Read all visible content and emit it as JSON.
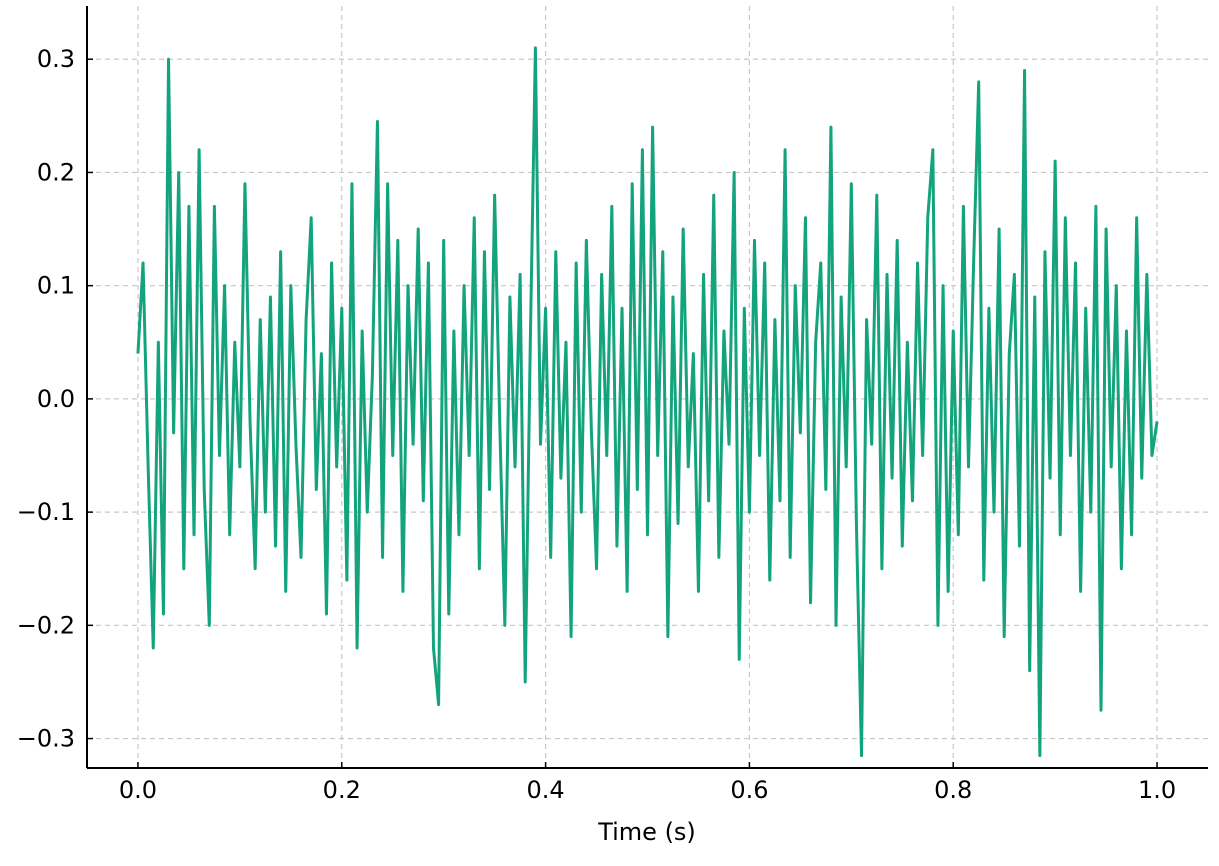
{
  "chart_data": {
    "type": "line",
    "xlabel": "Time (s)",
    "xlim": [
      -0.05,
      1.05
    ],
    "ylim": [
      -0.326,
      0.347
    ],
    "xticks": [
      {
        "value": 0,
        "label": "0.0"
      },
      0.2,
      0.4,
      0.6,
      0.8,
      {
        "value": 1,
        "label": "1.0"
      }
    ],
    "yticks": [
      {
        "value": -0.3,
        "label": "−0.3"
      },
      {
        "value": -0.2,
        "label": "−0.2"
      },
      {
        "value": -0.1,
        "label": "−0.1"
      },
      {
        "value": 0,
        "label": "0.0"
      },
      0.1,
      0.2,
      0.3
    ],
    "grid": true,
    "x": [
      0,
      0.005,
      0.01,
      0.015,
      0.02,
      0.025,
      0.03,
      0.035,
      0.04,
      0.045,
      0.05,
      0.055,
      0.06,
      0.065,
      0.07,
      0.075,
      0.08,
      0.085,
      0.09,
      0.095,
      0.1,
      0.105,
      0.11,
      0.115,
      0.12,
      0.125,
      0.13,
      0.135,
      0.14,
      0.145,
      0.15,
      0.155,
      0.16,
      0.165,
      0.17,
      0.175,
      0.18,
      0.185,
      0.19,
      0.195,
      0.2,
      0.205,
      0.21,
      0.215,
      0.22,
      0.225,
      0.23,
      0.235,
      0.24,
      0.245,
      0.25,
      0.255,
      0.26,
      0.265,
      0.27,
      0.275,
      0.28,
      0.285,
      0.29,
      0.295,
      0.3,
      0.305,
      0.31,
      0.315,
      0.32,
      0.325,
      0.33,
      0.335,
      0.34,
      0.345,
      0.35,
      0.355,
      0.36,
      0.365,
      0.37,
      0.375,
      0.38,
      0.385,
      0.39,
      0.395,
      0.4,
      0.405,
      0.41,
      0.415,
      0.42,
      0.425,
      0.43,
      0.435,
      0.44,
      0.445,
      0.45,
      0.455,
      0.46,
      0.465,
      0.47,
      0.475,
      0.48,
      0.485,
      0.49,
      0.495,
      0.5,
      0.505,
      0.51,
      0.515,
      0.52,
      0.525,
      0.53,
      0.535,
      0.54,
      0.545,
      0.55,
      0.555,
      0.56,
      0.565,
      0.57,
      0.575,
      0.58,
      0.585,
      0.59,
      0.595,
      0.6,
      0.605,
      0.61,
      0.615,
      0.62,
      0.625,
      0.63,
      0.635,
      0.64,
      0.645,
      0.65,
      0.655,
      0.66,
      0.665,
      0.67,
      0.675,
      0.68,
      0.685,
      0.69,
      0.695,
      0.7,
      0.705,
      0.71,
      0.715,
      0.72,
      0.725,
      0.73,
      0.735,
      0.74,
      0.745,
      0.75,
      0.755,
      0.76,
      0.765,
      0.77,
      0.775,
      0.78,
      0.785,
      0.79,
      0.795,
      0.8,
      0.805,
      0.81,
      0.815,
      0.82,
      0.825,
      0.83,
      0.835,
      0.84,
      0.845,
      0.85,
      0.855,
      0.86,
      0.865,
      0.87,
      0.875,
      0.88,
      0.885,
      0.89,
      0.895,
      0.9,
      0.905,
      0.91,
      0.915,
      0.92,
      0.925,
      0.93,
      0.935,
      0.94,
      0.945,
      0.95,
      0.955,
      0.96,
      0.965,
      0.97,
      0.975,
      0.98,
      0.985,
      0.99,
      0.995,
      1
    ],
    "series": [
      {
        "color": "#13a37d",
        "values": [
          0.04,
          0.12,
          -0.06,
          -0.22,
          0.05,
          -0.19,
          0.3,
          -0.03,
          0.2,
          -0.15,
          0.17,
          -0.12,
          0.22,
          -0.08,
          -0.2,
          0.17,
          -0.05,
          0.1,
          -0.12,
          0.05,
          -0.06,
          0.19,
          -0.02,
          -0.15,
          0.07,
          -0.1,
          0.09,
          -0.13,
          0.13,
          -0.17,
          0.1,
          -0.04,
          -0.14,
          0.07,
          0.16,
          -0.08,
          0.04,
          -0.19,
          0.12,
          -0.06,
          0.08,
          -0.16,
          0.19,
          -0.22,
          0.06,
          -0.1,
          0.02,
          0.245,
          -0.14,
          0.19,
          -0.05,
          0.14,
          -0.17,
          0.1,
          -0.04,
          0.15,
          -0.09,
          0.12,
          -0.22,
          -0.27,
          0.14,
          -0.19,
          0.06,
          -0.12,
          0.1,
          -0.05,
          0.16,
          -0.15,
          0.13,
          -0.08,
          0.18,
          -0.02,
          -0.2,
          0.09,
          -0.06,
          0.11,
          -0.25,
          0.05,
          0.31,
          -0.04,
          0.08,
          -0.14,
          0.13,
          -0.07,
          0.05,
          -0.21,
          0.12,
          -0.1,
          0.14,
          -0.03,
          -0.15,
          0.11,
          -0.05,
          0.17,
          -0.13,
          0.08,
          -0.17,
          0.19,
          -0.08,
          0.22,
          -0.12,
          0.24,
          -0.05,
          0.13,
          -0.21,
          0.09,
          -0.11,
          0.15,
          -0.06,
          0.04,
          -0.17,
          0.11,
          -0.09,
          0.18,
          -0.14,
          0.06,
          -0.04,
          0.2,
          -0.23,
          0.08,
          -0.1,
          0.14,
          -0.05,
          0.12,
          -0.16,
          0.07,
          -0.09,
          0.22,
          -0.14,
          0.1,
          -0.03,
          0.16,
          -0.18,
          0.05,
          0.12,
          -0.08,
          0.24,
          -0.2,
          0.09,
          -0.06,
          0.19,
          -0.11,
          -0.315,
          0.07,
          -0.04,
          0.18,
          -0.15,
          0.11,
          -0.07,
          0.14,
          -0.13,
          0.05,
          -0.09,
          0.12,
          -0.05,
          0.16,
          0.22,
          -0.2,
          0.1,
          -0.17,
          0.06,
          -0.12,
          0.17,
          -0.06,
          0.12,
          0.28,
          -0.16,
          0.08,
          -0.1,
          0.15,
          -0.21,
          0.04,
          0.11,
          -0.13,
          0.29,
          -0.24,
          0.09,
          -0.315,
          0.13,
          -0.07,
          0.21,
          -0.12,
          0.16,
          -0.05,
          0.12,
          -0.17,
          0.08,
          -0.1,
          0.17,
          -0.275,
          0.15,
          -0.06,
          0.1,
          -0.15,
          0.06,
          -0.12,
          0.16,
          -0.07,
          0.11,
          -0.05,
          -0.02
        ]
      }
    ]
  }
}
